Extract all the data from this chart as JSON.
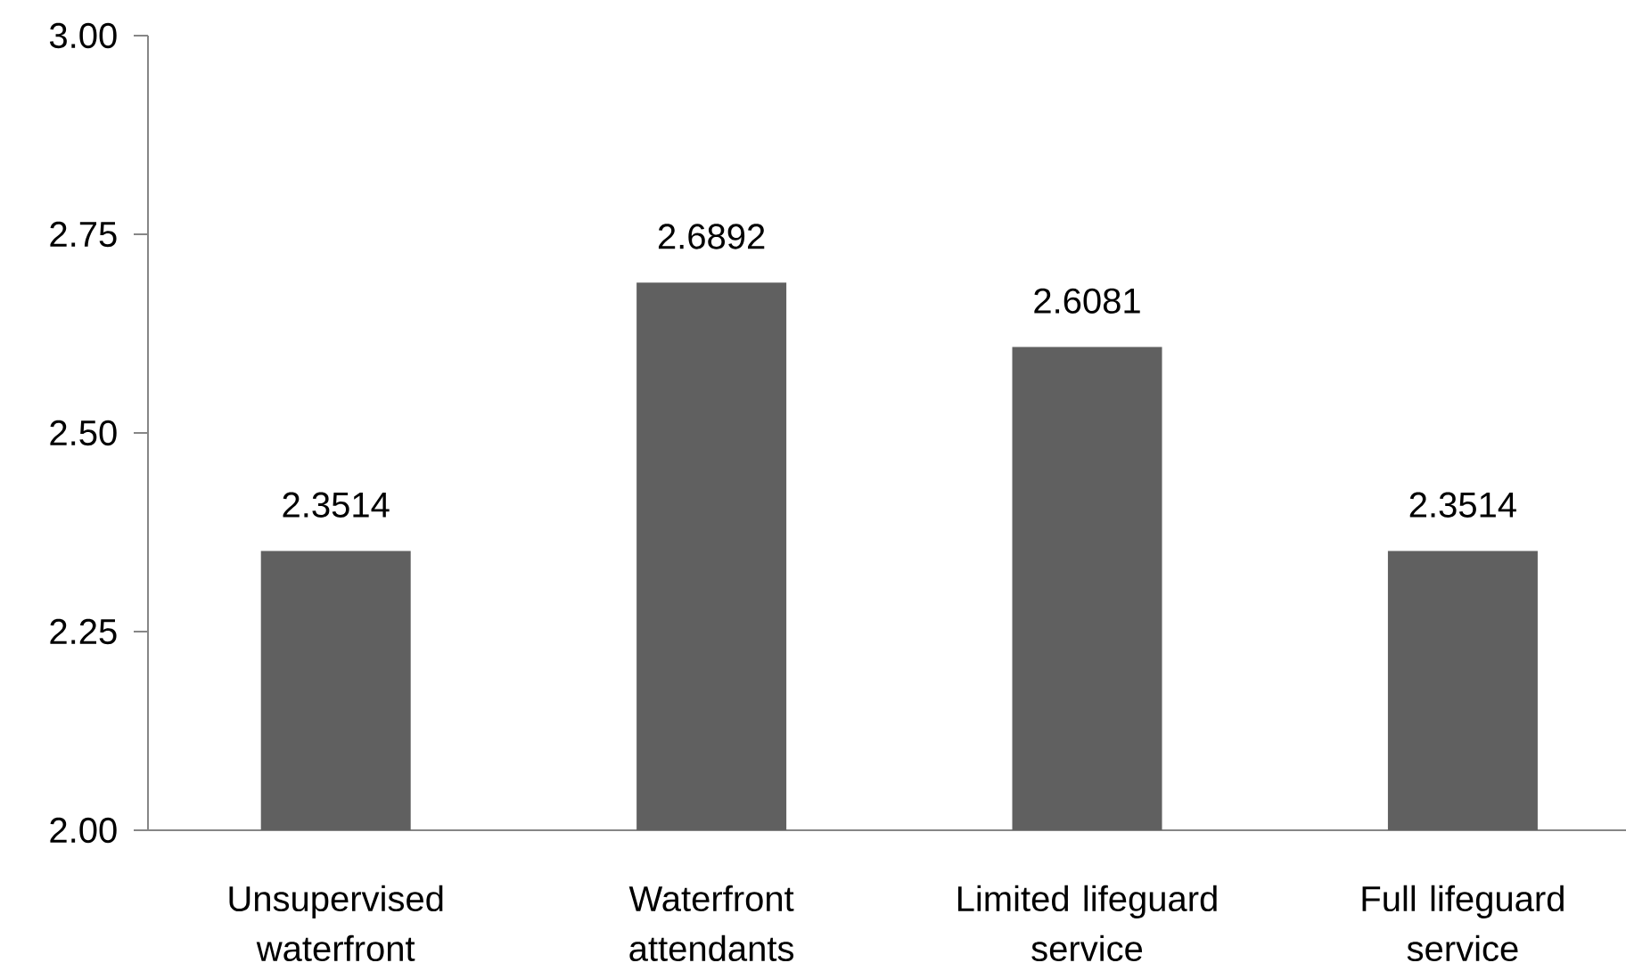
{
  "chart_data": {
    "type": "bar",
    "categories": [
      "Unsupervised waterfront",
      "Waterfront attendants",
      "Limited lifeguard service",
      "Full lifeguard service"
    ],
    "values": [
      2.3514,
      2.6892,
      2.6081,
      2.3514
    ],
    "color": "#606060",
    "ylim": [
      2,
      3
    ],
    "yticks": [
      {
        "value": 2,
        "label": "2.00"
      },
      {
        "value": 2.25,
        "label": "2.25"
      },
      {
        "value": 2.5,
        "label": "2.50"
      },
      {
        "value": 2.75,
        "label": "2.75"
      },
      {
        "value": 3,
        "label": "3.00"
      }
    ],
    "data_labels": true
  }
}
